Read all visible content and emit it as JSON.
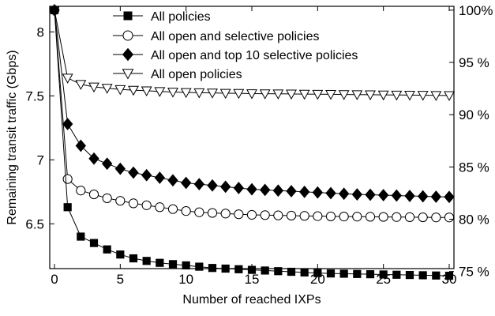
{
  "chart_data": {
    "type": "line",
    "xlabel": "Number of reached IXPs",
    "ylabel": "Remaining transit traffic (Gbps)",
    "xlim": [
      0,
      30
    ],
    "ylim": [
      6.15,
      8.2
    ],
    "xticks": [
      0,
      5,
      10,
      15,
      20,
      25,
      30
    ],
    "yticks": [
      6.5,
      7,
      7.5,
      8
    ],
    "y2ticks": [
      "75 %",
      "80 %",
      "85 %",
      "90 %",
      "95 %",
      "100%"
    ],
    "y2_values": [
      75,
      80,
      85,
      90,
      95,
      100
    ],
    "y2_reference_gbps_at_100pct": 8.17,
    "grid": false,
    "legend_position": "top",
    "series": [
      {
        "name": "All policies",
        "marker": "square-filled",
        "x": [
          0,
          1,
          2,
          3,
          4,
          5,
          6,
          7,
          8,
          9,
          10,
          11,
          12,
          13,
          14,
          15,
          16,
          17,
          18,
          19,
          20,
          21,
          22,
          23,
          24,
          25,
          26,
          27,
          28,
          29,
          30
        ],
        "values": [
          8.17,
          6.63,
          6.4,
          6.35,
          6.3,
          6.26,
          6.23,
          6.21,
          6.195,
          6.185,
          6.175,
          6.165,
          6.155,
          6.15,
          6.145,
          6.14,
          6.135,
          6.13,
          6.125,
          6.12,
          6.115,
          6.112,
          6.11,
          6.108,
          6.106,
          6.104,
          6.102,
          6.1,
          6.098,
          6.096,
          6.094
        ]
      },
      {
        "name": "All open and selective policies",
        "marker": "circle-open",
        "x": [
          0,
          1,
          2,
          3,
          4,
          5,
          6,
          7,
          8,
          9,
          10,
          11,
          12,
          13,
          14,
          15,
          16,
          17,
          18,
          19,
          20,
          21,
          22,
          23,
          24,
          25,
          26,
          27,
          28,
          29,
          30
        ],
        "values": [
          8.17,
          6.85,
          6.76,
          6.73,
          6.7,
          6.68,
          6.66,
          6.645,
          6.63,
          6.615,
          6.6,
          6.59,
          6.585,
          6.58,
          6.575,
          6.57,
          6.568,
          6.566,
          6.564,
          6.562,
          6.56,
          6.558,
          6.557,
          6.556,
          6.555,
          6.554,
          6.553,
          6.552,
          6.551,
          6.55,
          6.55
        ]
      },
      {
        "name": "All open and top 10 selective policies",
        "marker": "diamond-filled",
        "x": [
          0,
          1,
          2,
          3,
          4,
          5,
          6,
          7,
          8,
          9,
          10,
          11,
          12,
          13,
          14,
          15,
          16,
          17,
          18,
          19,
          20,
          21,
          22,
          23,
          24,
          25,
          26,
          27,
          28,
          29,
          30
        ],
        "values": [
          8.17,
          7.28,
          7.11,
          7.01,
          6.97,
          6.93,
          6.9,
          6.88,
          6.86,
          6.84,
          6.82,
          6.81,
          6.8,
          6.79,
          6.78,
          6.77,
          6.765,
          6.76,
          6.755,
          6.75,
          6.745,
          6.74,
          6.735,
          6.73,
          6.727,
          6.724,
          6.721,
          6.718,
          6.715,
          6.712,
          6.71
        ]
      },
      {
        "name": "All open policies",
        "marker": "triangle-down-open",
        "x": [
          0,
          1,
          2,
          3,
          4,
          5,
          6,
          7,
          8,
          9,
          10,
          11,
          12,
          13,
          14,
          15,
          16,
          17,
          18,
          19,
          20,
          21,
          22,
          23,
          24,
          25,
          26,
          27,
          28,
          29,
          30
        ],
        "values": [
          8.17,
          7.64,
          7.59,
          7.57,
          7.56,
          7.55,
          7.545,
          7.54,
          7.535,
          7.53,
          7.527,
          7.525,
          7.523,
          7.521,
          7.52,
          7.518,
          7.517,
          7.516,
          7.515,
          7.514,
          7.513,
          7.512,
          7.511,
          7.51,
          7.509,
          7.508,
          7.507,
          7.506,
          7.505,
          7.504,
          7.503
        ]
      }
    ]
  }
}
